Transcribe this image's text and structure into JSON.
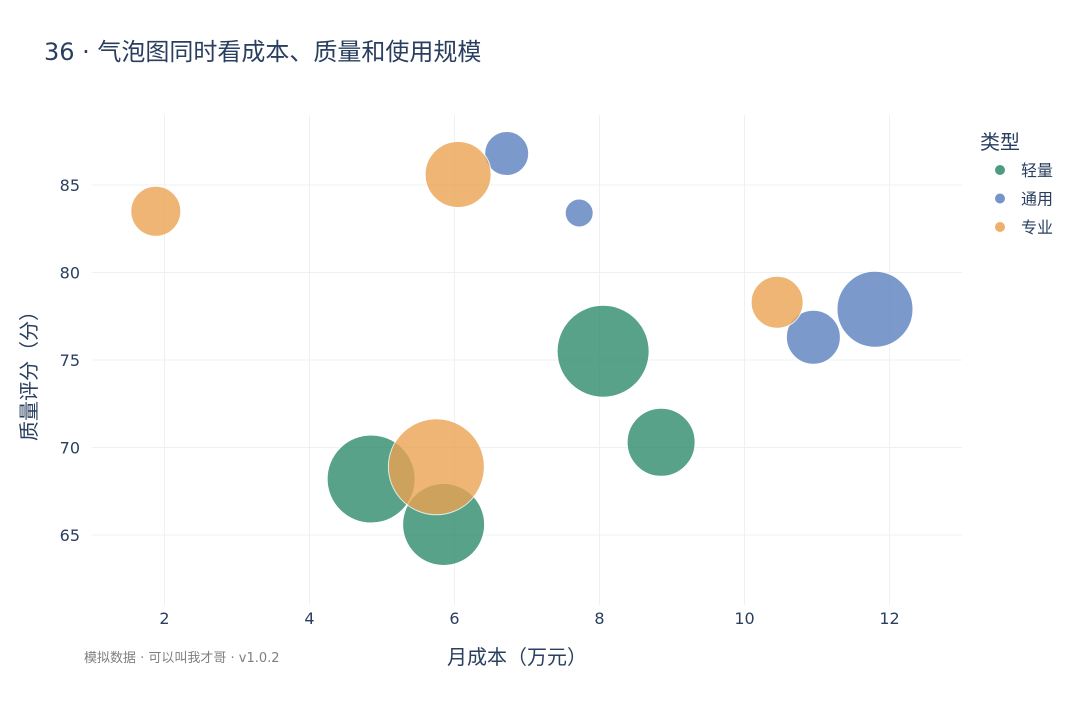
{
  "chart_data": {
    "type": "scatter",
    "title": "36 · 气泡图同时看成本、质量和使用规模",
    "xlabel": "月成本（万元）",
    "ylabel": "质量评分（分）",
    "xlim": [
      1,
      13
    ],
    "ylim": [
      61,
      89
    ],
    "x_ticks": [
      2,
      4,
      6,
      8,
      10,
      12
    ],
    "y_ticks": [
      65,
      70,
      75,
      80,
      85
    ],
    "grid": true,
    "legend_title": "类型",
    "legend_position": "top-right",
    "footnote": "模拟数据 · 可以叫我才哥 · v1.0.2",
    "series": [
      {
        "name": "轻量",
        "color": "#2e8b6b",
        "points": [
          {
            "x": 8.05,
            "y": 75.5,
            "size": 46
          },
          {
            "x": 8.85,
            "y": 70.3,
            "size": 34
          },
          {
            "x": 4.85,
            "y": 68.2,
            "size": 44
          },
          {
            "x": 5.85,
            "y": 65.6,
            "size": 41
          }
        ]
      },
      {
        "name": "通用",
        "color": "#5b82bf",
        "points": [
          {
            "x": 6.72,
            "y": 86.8,
            "size": 22
          },
          {
            "x": 7.72,
            "y": 83.4,
            "size": 14
          },
          {
            "x": 10.95,
            "y": 76.3,
            "size": 27
          },
          {
            "x": 11.8,
            "y": 77.9,
            "size": 38
          }
        ]
      },
      {
        "name": "专业",
        "color": "#eba352",
        "points": [
          {
            "x": 1.88,
            "y": 83.5,
            "size": 25
          },
          {
            "x": 6.05,
            "y": 85.6,
            "size": 33
          },
          {
            "x": 10.45,
            "y": 78.3,
            "size": 26
          },
          {
            "x": 5.75,
            "y": 68.9,
            "size": 48
          }
        ]
      }
    ]
  }
}
